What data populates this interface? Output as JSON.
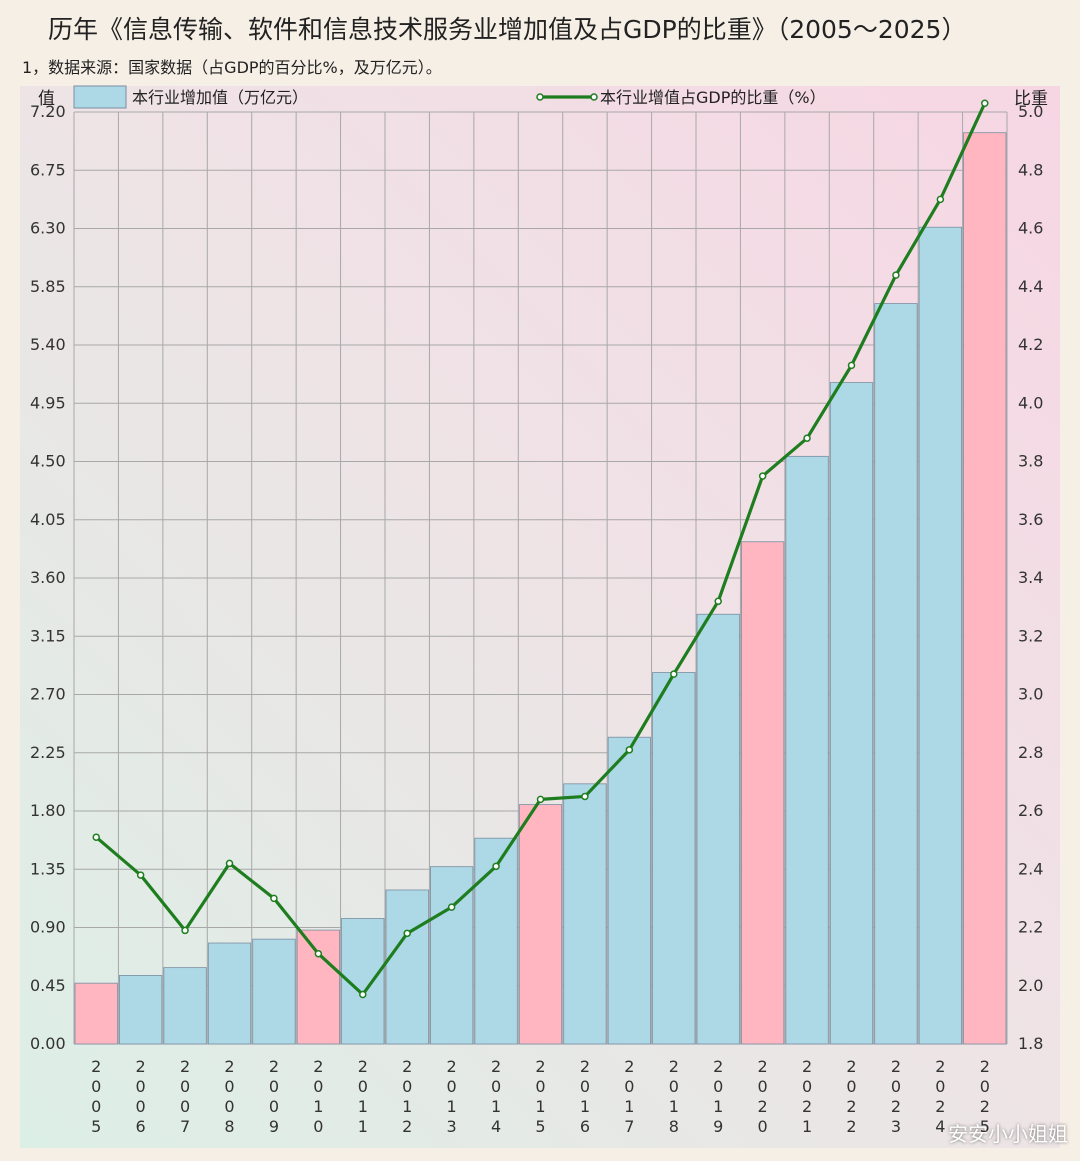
{
  "title": "历年《信息传输、软件和信息技术服务业增加值及占GDP的比重》（2005～2025）",
  "subtitle": "1，数据来源：国家数据（占GDP的百分比%，及万亿元）。",
  "watermark_credit": "安安小小姐姐",
  "chart_data": {
    "type": "bar",
    "categories": [
      "2005",
      "2006",
      "2007",
      "2008",
      "2009",
      "2010",
      "2011",
      "2012",
      "2013",
      "2014",
      "2015",
      "2016",
      "2017",
      "2018",
      "2019",
      "2020",
      "2021",
      "2022",
      "2023",
      "2024",
      "2025"
    ],
    "ylabel_left": "值",
    "ylabel_right": "比重",
    "ylim_left": [
      0,
      7.2
    ],
    "ylim_right": [
      1.8,
      5.0
    ],
    "yticks_left": [
      "0.00",
      "0.45",
      "0.90",
      "1.35",
      "1.80",
      "2.25",
      "2.70",
      "3.15",
      "3.60",
      "4.05",
      "4.50",
      "4.95",
      "5.40",
      "5.85",
      "6.30",
      "6.75",
      "7.20"
    ],
    "yticks_right": [
      "1.8",
      "2.0",
      "2.2",
      "2.4",
      "2.6",
      "2.8",
      "3.0",
      "3.2",
      "3.4",
      "3.6",
      "3.8",
      "4.0",
      "4.2",
      "4.4",
      "4.6",
      "4.8",
      "5.0"
    ],
    "grid": true,
    "legend_position": "top",
    "bar_color": "#add8e6",
    "highlight_color": "#ffb6c1",
    "line_color": "#1e7d1e",
    "highlighted_years": [
      "2005",
      "2010",
      "2015",
      "2020",
      "2025"
    ],
    "series": [
      {
        "name": "本行业增加值（万亿元）",
        "type": "bar",
        "axis": "left",
        "values": [
          0.47,
          0.53,
          0.59,
          0.78,
          0.81,
          0.88,
          0.97,
          1.19,
          1.37,
          1.59,
          1.85,
          2.01,
          2.37,
          2.87,
          3.32,
          3.88,
          4.54,
          5.11,
          5.72,
          6.31,
          7.04
        ]
      },
      {
        "name": "本行业增值占GDP的比重（%）",
        "type": "line",
        "axis": "right",
        "values": [
          2.51,
          2.38,
          2.19,
          2.42,
          2.3,
          2.11,
          1.97,
          2.18,
          2.27,
          2.41,
          2.64,
          2.65,
          2.81,
          3.07,
          3.32,
          3.75,
          3.88,
          4.13,
          4.44,
          4.7,
          5.03
        ]
      }
    ]
  }
}
